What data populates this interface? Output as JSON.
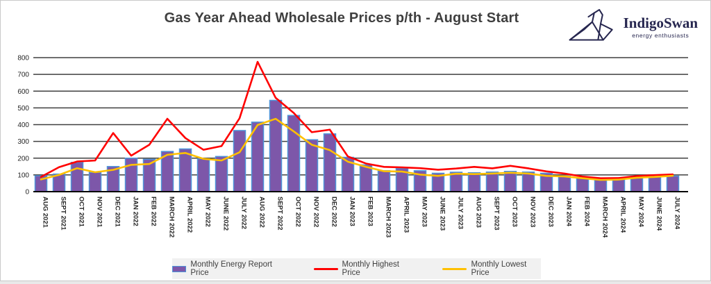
{
  "header": {
    "logo": {
      "name": "IndigoSwan",
      "tagline": "energy enthusiasts"
    }
  },
  "colors": {
    "bar_fill": "#7d57a9",
    "bar_border": "#4e95d9",
    "highest_line": "#ff0000",
    "lowest_line": "#ffc000",
    "gridline": "#3f3f3f",
    "axis": "#000000",
    "tick_text": "#1f1f1f",
    "month_text": "#262626",
    "title_text": "#3f3f3f",
    "legend_bg": "#f1f1f1",
    "logo_navy": "#26264f"
  },
  "chart_data": {
    "type": "bar",
    "title": "Gas Year Ahead Wholesale Prices p/th - August Start",
    "xlabel": "",
    "ylabel": "",
    "ylim": [
      0,
      800
    ],
    "y_ticks": [
      0,
      100,
      200,
      300,
      400,
      500,
      600,
      700,
      800
    ],
    "grid": true,
    "legend_position": "bottom",
    "categories": [
      "AUG 2021",
      "SEPT 2021",
      "OCT 2021",
      "NOV 2021",
      "DEC 2021",
      "JAN 2022",
      "FEB 2022",
      "MARCH 2022",
      "APRIL 2022",
      "MAY 2022",
      "JUNE 2022",
      "JULY 2022",
      "AUG 2022",
      "SEPT 2022",
      "OCT 2022",
      "NOV 2022",
      "DEC 2022",
      "JAN 2023",
      "FEB 2023",
      "MARCH 2023",
      "APRIL 2023",
      "MAY 2023",
      "JUNE 2023",
      "JULY 2023",
      "AUG 2023",
      "SEPT 2023",
      "OCT 2023",
      "NOV 2023",
      "DEC 2023",
      "JAN 2024",
      "FEB 2024",
      "MARCH 2024",
      "APRIL 2024",
      "MAY 2024",
      "JUNE 2024",
      "JULY 2024"
    ],
    "series": [
      {
        "name": "Monthly Energy Report Price",
        "type": "bar",
        "values": [
          95,
          105,
          175,
          115,
          150,
          200,
          193,
          240,
          255,
          196,
          210,
          365,
          415,
          545,
          455,
          310,
          345,
          205,
          160,
          125,
          138,
          125,
          110,
          116,
          113,
          117,
          121,
          117,
          110,
          92,
          82,
          76,
          79,
          86,
          89,
          93
        ]
      },
      {
        "name": "Monthly Highest Price",
        "type": "line",
        "values": [
          88,
          146,
          180,
          186,
          350,
          215,
          280,
          435,
          320,
          250,
          272,
          438,
          775,
          560,
          470,
          355,
          370,
          210,
          168,
          148,
          145,
          140,
          131,
          138,
          148,
          139,
          154,
          139,
          121,
          108,
          90,
          80,
          81,
          93,
          99,
          103
        ]
      },
      {
        "name": "Monthly Lowest Price",
        "type": "line",
        "values": [
          73,
          100,
          140,
          116,
          130,
          160,
          165,
          220,
          231,
          196,
          186,
          235,
          398,
          435,
          360,
          280,
          248,
          179,
          148,
          122,
          120,
          102,
          94,
          107,
          105,
          108,
          113,
          108,
          94,
          91,
          80,
          70,
          72,
          83,
          88,
          95
        ]
      }
    ]
  }
}
